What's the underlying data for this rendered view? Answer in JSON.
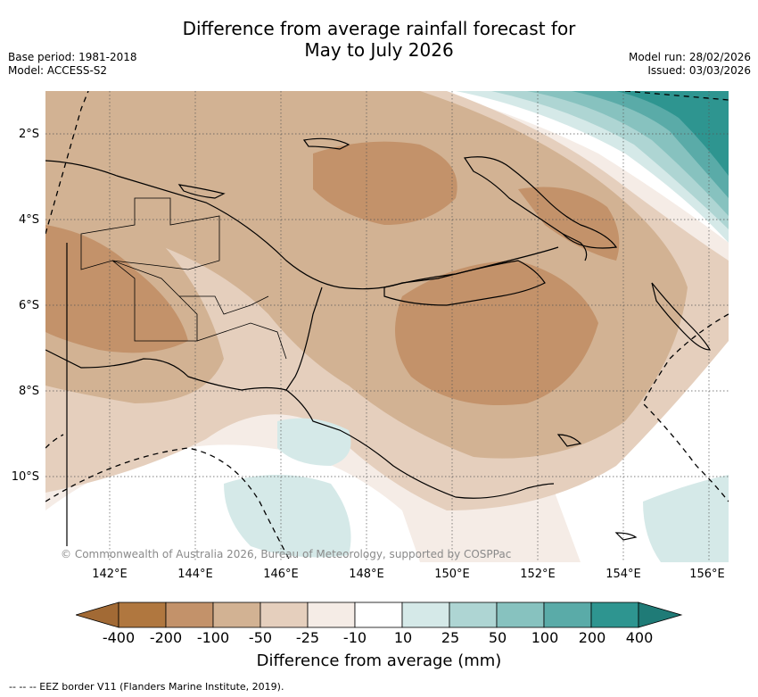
{
  "title": {
    "line1": "Difference from average rainfall forecast for",
    "line2": "May to July 2026"
  },
  "meta": {
    "base_period": "Base period: 1981-2018",
    "model": "Model: ACCESS-S2",
    "model_run": "Model run: 28/02/2026",
    "issued": "Issued: 03/03/2026"
  },
  "map": {
    "region": "Papua New Guinea",
    "latitude_labels": [
      "2°S",
      "4°S",
      "6°S",
      "8°S",
      "10°S"
    ],
    "longitude_labels": [
      "142°E",
      "144°E",
      "146°E",
      "148°E",
      "150°E",
      "152°E",
      "154°E",
      "156°E"
    ],
    "copyright": "© Commonwealth of Australia 2026, Bureau of Meteorology, supported by COSPPac"
  },
  "colorbar": {
    "title": "Difference from average (mm)",
    "tick_labels": [
      "-400",
      "-200",
      "-100",
      "-50",
      "-25",
      "-10",
      "10",
      "25",
      "50",
      "100",
      "200",
      "400"
    ],
    "colors": [
      "#a26a35",
      "#b0773f",
      "#c3926a",
      "#d2b293",
      "#e5cfbd",
      "#f5ece6",
      "#ffffff",
      "#d5e9e8",
      "#aed5d3",
      "#87c2bf",
      "#5aaba8",
      "#2e9590",
      "#1f7b77"
    ]
  },
  "legend_note": "--  --  -- EEZ border V11 (Flanders Marine Institute, 2019)."
}
